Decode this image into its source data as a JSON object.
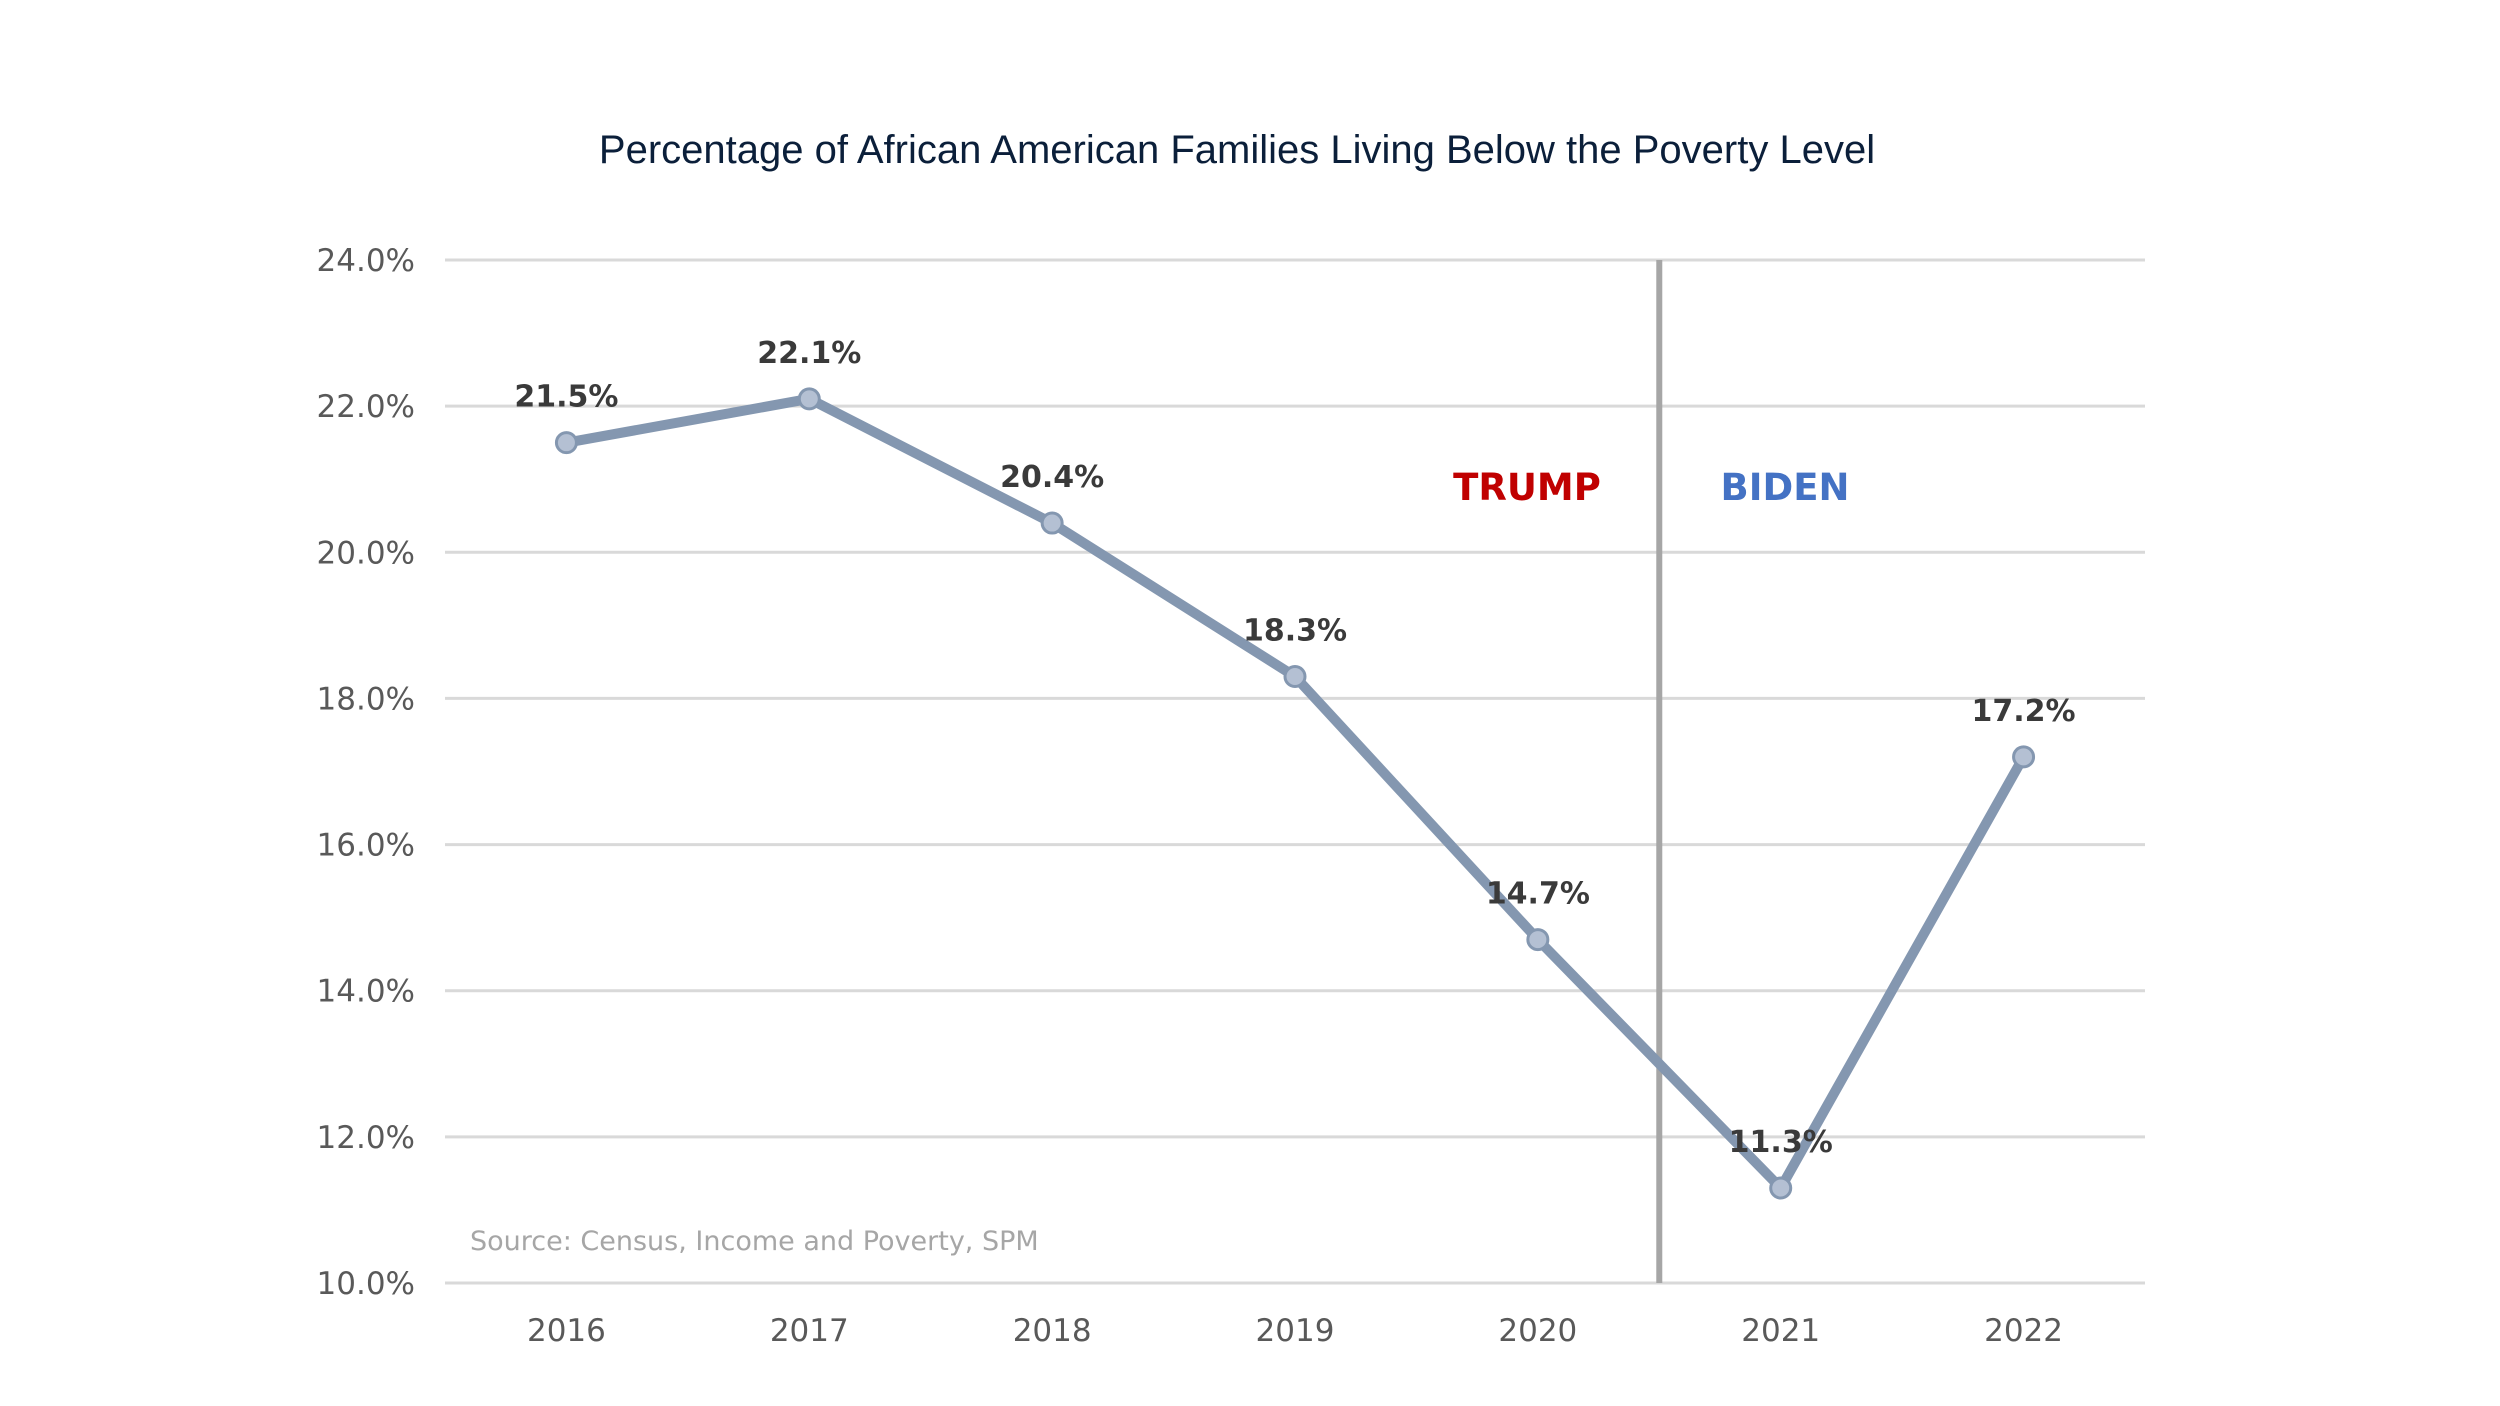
{
  "chart_data": {
    "type": "line",
    "title": "Percentage of African American Families Living Below the Poverty Level",
    "categories": [
      "2016",
      "2017",
      "2018",
      "2019",
      "2020",
      "2021",
      "2022"
    ],
    "series": [
      {
        "values": [
          21.5,
          22.1,
          20.4,
          18.3,
          14.7,
          11.3,
          17.2
        ],
        "data_labels": [
          "21.5%",
          "22.1%",
          "20.4%",
          "18.3%",
          "14.7%",
          "11.3%",
          "17.2%"
        ],
        "color": "#8497b0"
      }
    ],
    "ylim": [
      10,
      24
    ],
    "yticks": [
      10,
      12,
      14,
      16,
      18,
      20,
      22,
      24
    ],
    "ytick_labels": [
      "10.0%",
      "12.0%",
      "14.0%",
      "16.0%",
      "18.0%",
      "20.0%",
      "22.0%",
      "24.0%"
    ],
    "xlabel": "",
    "ylabel": "",
    "grid": true,
    "legend": "none",
    "divider": {
      "between": [
        "2020",
        "2021"
      ],
      "color": "#a6a6a6"
    },
    "annotations": {
      "left_era": {
        "text": "TRUMP",
        "color": "#c00000"
      },
      "right_era": {
        "text": "BIDEN",
        "color": "#4472c4"
      },
      "source": "Source: Census, Income and Poverty, SPM"
    }
  }
}
